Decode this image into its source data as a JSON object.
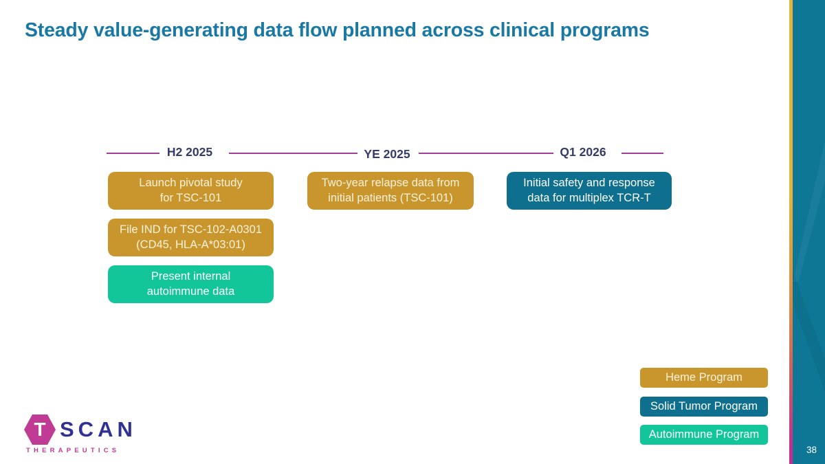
{
  "slide": {
    "title": "Steady value-generating data flow planned across clinical programs",
    "page_number": "38"
  },
  "timeline": {
    "milestones": [
      "H2 2025",
      "YE 2025",
      "Q1 2026"
    ]
  },
  "boxes": [
    {
      "line1": "Launch pivotal study",
      "line2": "for TSC-101",
      "program": "heme",
      "milestone": "H2 2025"
    },
    {
      "line1": "File IND for TSC-102-A0301",
      "line2": "(CD45, HLA-A*03:01)",
      "program": "heme",
      "milestone": "H2 2025"
    },
    {
      "line1": "Present internal",
      "line2": "autoimmune data",
      "program": "autoimmune",
      "milestone": "H2 2025"
    },
    {
      "line1": "Two-year relapse data from",
      "line2": "initial patients (TSC-101)",
      "program": "heme",
      "milestone": "YE 2025"
    },
    {
      "line1": "Initial safety and response",
      "line2": "data for multiplex TCR-T",
      "program": "solid_tumor",
      "milestone": "Q1 2026"
    }
  ],
  "legend": [
    {
      "label": "Heme Program",
      "program": "heme"
    },
    {
      "label": "Solid Tumor Program",
      "program": "solid_tumor"
    },
    {
      "label": "Autoimmune Program",
      "program": "autoimmune"
    }
  ],
  "logo": {
    "t": "T",
    "scan": "SCAN",
    "therapeutics": "THERAPEUTICS"
  },
  "colors": {
    "programs": {
      "heme": {
        "bg": "#C9962E",
        "text": "#FBF2D9"
      },
      "solid_tumor": {
        "bg": "#0E6F8E",
        "text": "#FFFFFF"
      },
      "autoimmune": {
        "bg": "#12C69A",
        "text": "#FFFFFF"
      }
    },
    "theme": {
      "title_teal": "#1979A3",
      "timeline_navy": "#333B66",
      "accent_purple": "#A23E93",
      "sidebar_teal": "#0E7796",
      "logo_pink": "#C03B93",
      "logo_navy": "#2F3193",
      "stripe_top": "#E2B43C",
      "stripe_mid": "#CE5A60",
      "stripe_bottom": "#C22D8E"
    }
  }
}
